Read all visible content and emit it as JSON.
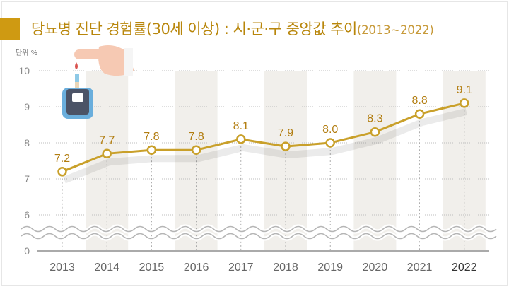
{
  "title": "당뇨병 진단 경험률(30세 이상) : 시·군·구 중앙값 추이",
  "subtitle": "(2013~2022)",
  "colors": {
    "accent": "#cf9a12",
    "line": "#c9a02a",
    "label": "#b27d10",
    "band": "#f1efeb",
    "grid": "#bdbdbd"
  },
  "illustration": "finger-glucose-meter-icon",
  "chart_data": {
    "type": "line",
    "unit_label": "단위 %",
    "categories": [
      "2013",
      "2014",
      "2015",
      "2016",
      "2017",
      "2018",
      "2019",
      "2020",
      "2021",
      "2022"
    ],
    "values": [
      7.2,
      7.7,
      7.8,
      7.8,
      8.1,
      7.9,
      8.0,
      8.3,
      8.8,
      9.1
    ],
    "value_labels": [
      "7.2",
      "7.7",
      "7.8",
      "7.8",
      "8.1",
      "7.9",
      "8.0",
      "8.3",
      "8.8",
      "9.1"
    ],
    "yticks": [
      "10",
      "9",
      "8",
      "7",
      "6",
      "0"
    ],
    "ylim": [
      6,
      10
    ],
    "axis_break": true,
    "grid": true,
    "legend": "none"
  }
}
